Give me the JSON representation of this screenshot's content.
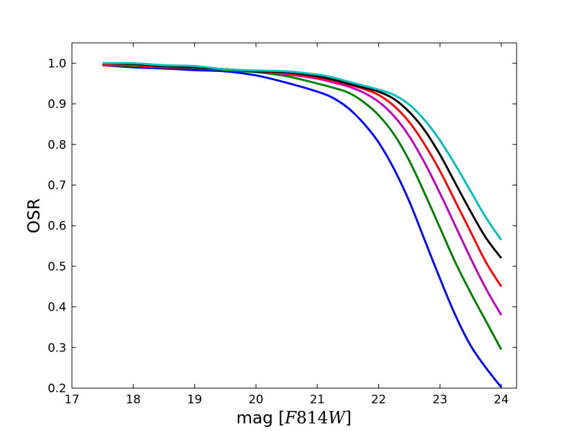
{
  "chart_data": {
    "type": "line",
    "title": "",
    "xlabel_prefix": "mag [",
    "xlabel_F": "F",
    "xlabel_num": "814",
    "xlabel_W": "W",
    "xlabel_suffix": "]",
    "ylabel": "OSR",
    "xlim": [
      17,
      24.25
    ],
    "ylim": [
      0.2,
      1.05
    ],
    "xticks": [
      "17",
      "18",
      "19",
      "20",
      "21",
      "22",
      "23",
      "24"
    ],
    "yticks": [
      "0.2",
      "0.3",
      "0.4",
      "0.5",
      "0.6",
      "0.7",
      "0.8",
      "0.9",
      "1.0"
    ],
    "grid": false,
    "legend": "none",
    "x": [
      17.5,
      18.0,
      18.5,
      19.0,
      19.5,
      20.0,
      20.5,
      21.0,
      21.25,
      21.5,
      21.75,
      22.0,
      22.25,
      22.5,
      22.75,
      23.0,
      23.25,
      23.5,
      23.75,
      24.0
    ],
    "series": [
      {
        "color": "#0000ff",
        "values": [
          0.995,
          0.99,
          0.987,
          0.983,
          0.98,
          0.97,
          0.952,
          0.93,
          0.915,
          0.89,
          0.853,
          0.805,
          0.74,
          0.66,
          0.565,
          0.47,
          0.38,
          0.305,
          0.25,
          0.202
        ]
      },
      {
        "color": "#008000",
        "values": [
          0.995,
          0.993,
          0.99,
          0.988,
          0.983,
          0.978,
          0.968,
          0.95,
          0.94,
          0.928,
          0.905,
          0.872,
          0.825,
          0.76,
          0.68,
          0.595,
          0.51,
          0.435,
          0.365,
          0.295
        ]
      },
      {
        "color": "#bf00bf",
        "values": [
          0.995,
          0.995,
          0.99,
          0.99,
          0.985,
          0.98,
          0.973,
          0.962,
          0.953,
          0.943,
          0.928,
          0.905,
          0.87,
          0.82,
          0.755,
          0.68,
          0.6,
          0.52,
          0.445,
          0.38
        ]
      },
      {
        "color": "#ff0000",
        "values": [
          0.995,
          0.995,
          0.99,
          0.99,
          0.985,
          0.98,
          0.975,
          0.965,
          0.957,
          0.948,
          0.937,
          0.922,
          0.895,
          0.855,
          0.8,
          0.735,
          0.66,
          0.585,
          0.51,
          0.45
        ]
      },
      {
        "color": "#000000",
        "values": [
          1.0,
          0.998,
          0.993,
          0.99,
          0.985,
          0.98,
          0.978,
          0.968,
          0.96,
          0.95,
          0.94,
          0.93,
          0.912,
          0.88,
          0.835,
          0.775,
          0.705,
          0.635,
          0.57,
          0.52
        ]
      },
      {
        "color": "#00bfbf",
        "values": [
          1.0,
          1.0,
          0.995,
          0.993,
          0.985,
          0.982,
          0.98,
          0.972,
          0.965,
          0.955,
          0.945,
          0.935,
          0.922,
          0.898,
          0.86,
          0.81,
          0.75,
          0.685,
          0.62,
          0.565
        ]
      }
    ]
  }
}
